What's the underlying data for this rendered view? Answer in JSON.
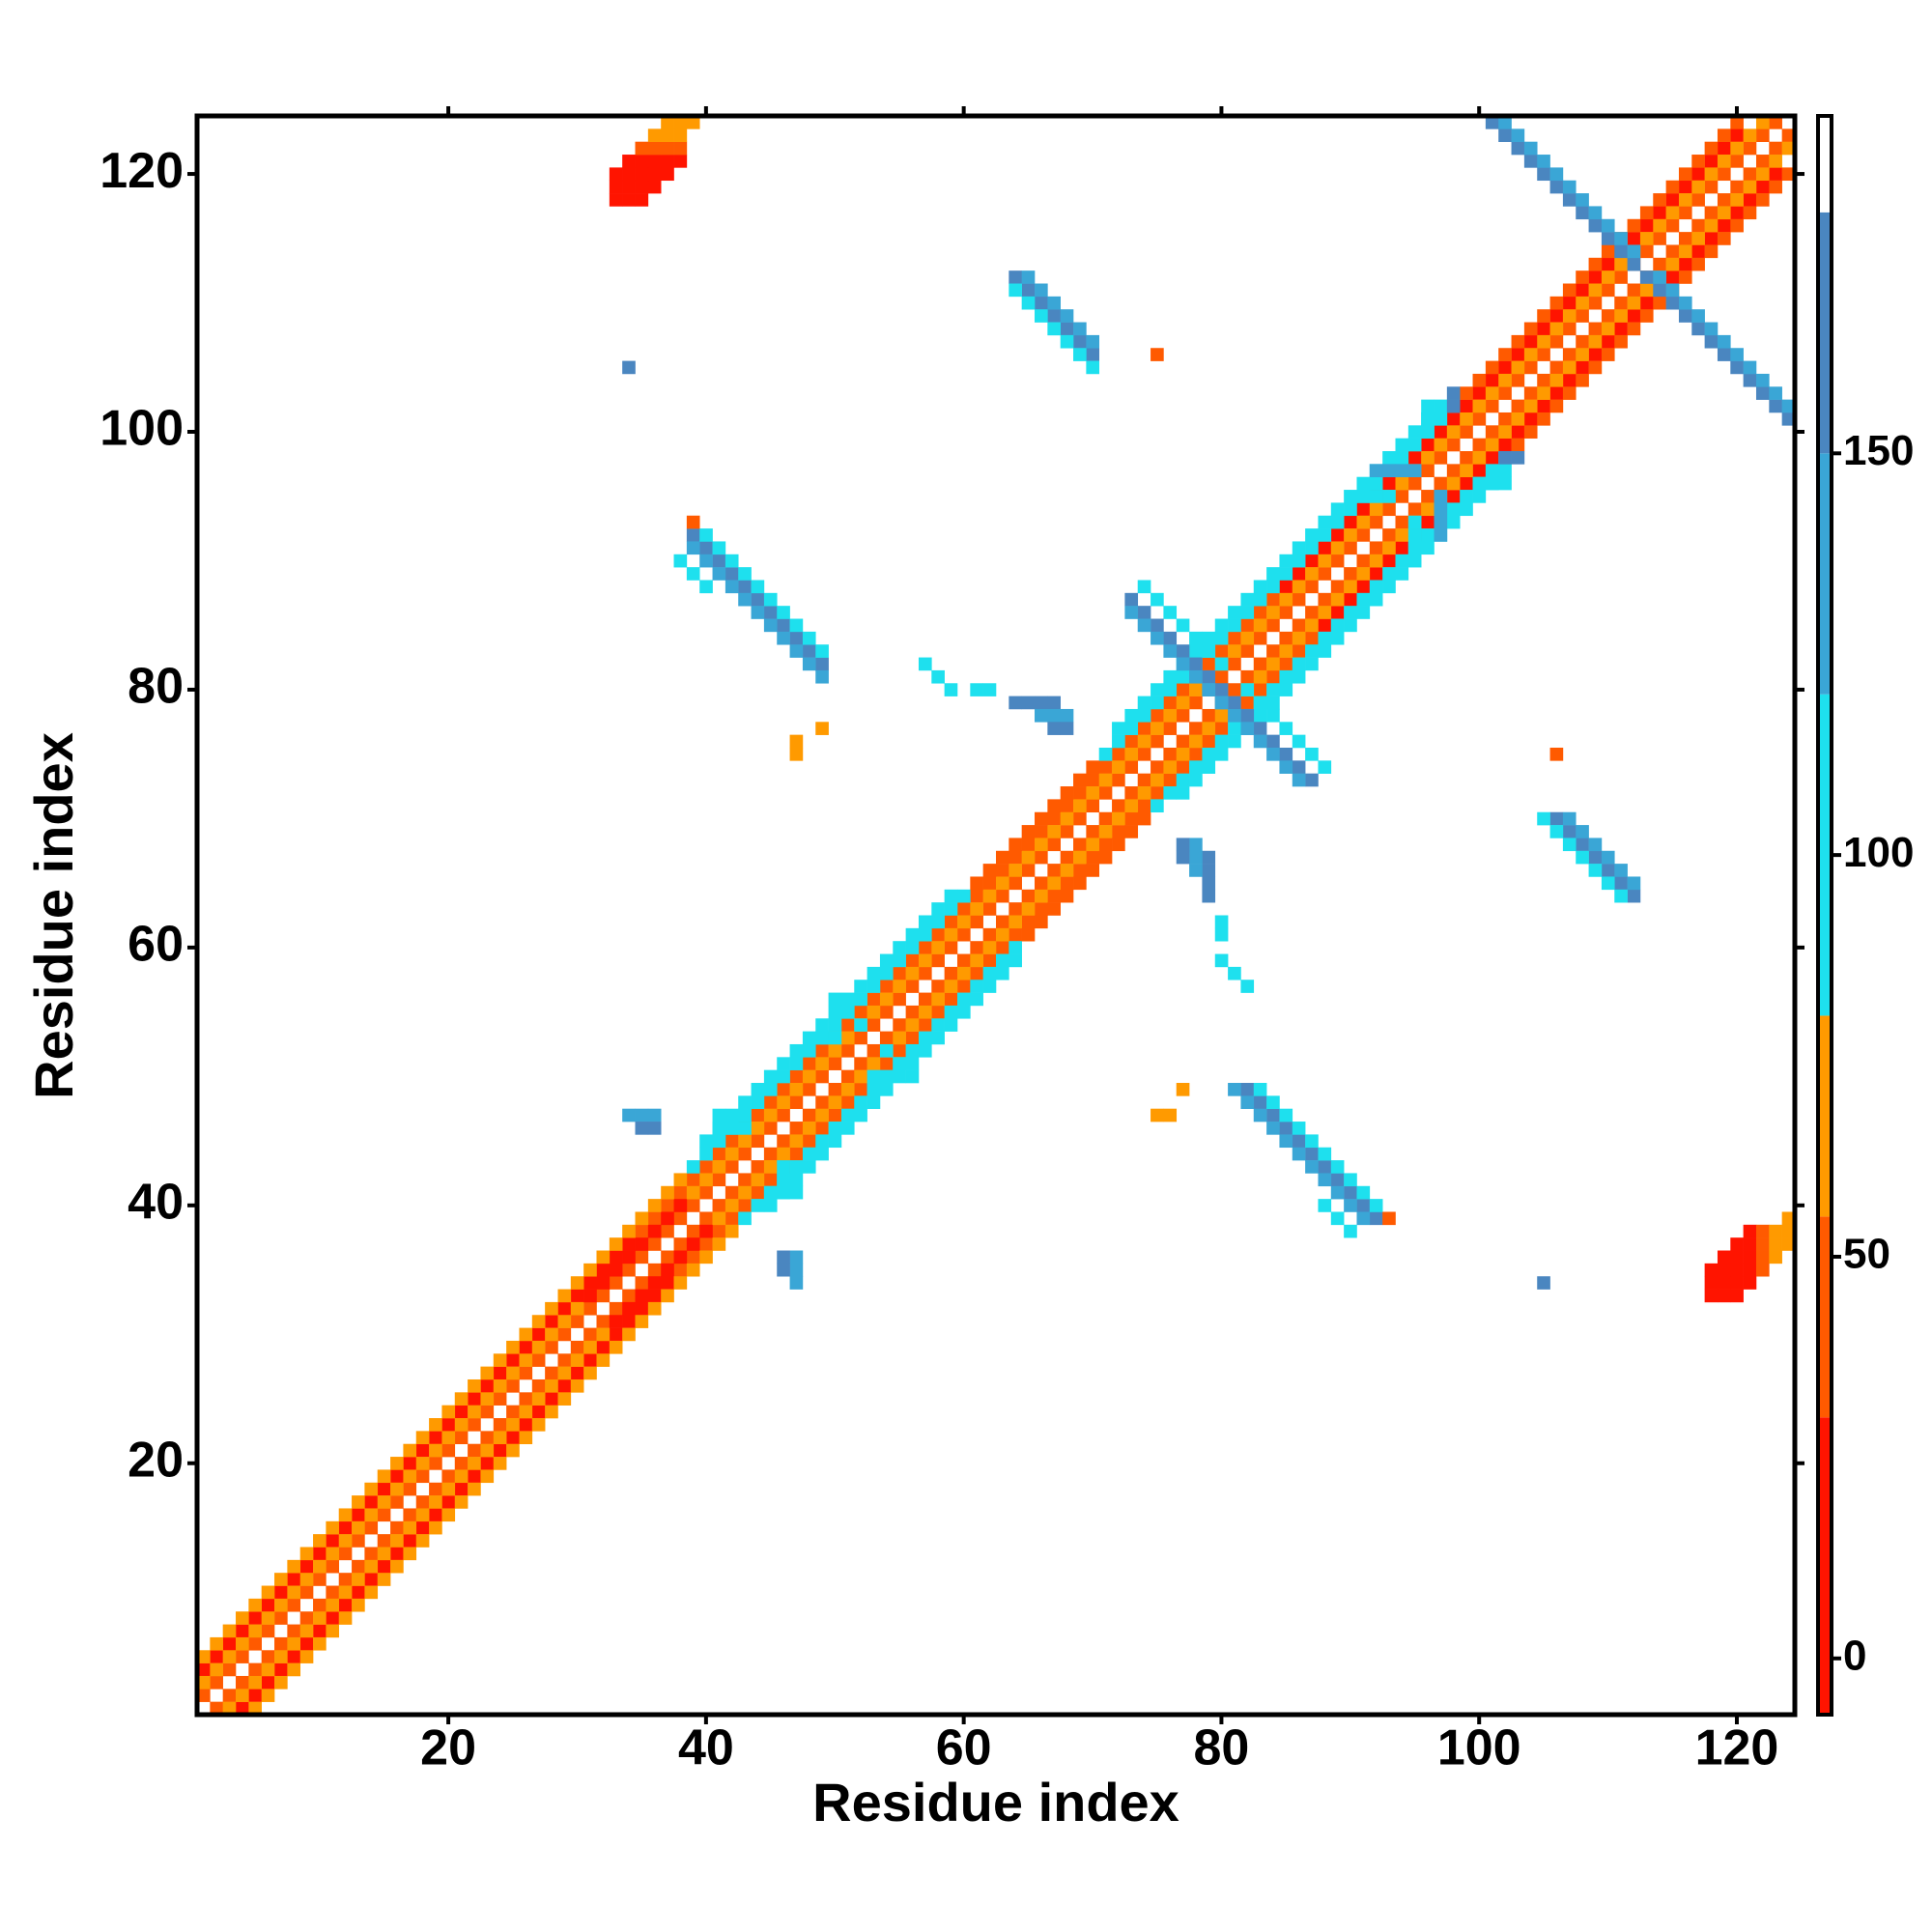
{
  "chart_data": {
    "type": "heatmap",
    "x_label": "Residue index",
    "y_label": "Residue index",
    "xlim": [
      0.5,
      124.5
    ],
    "ylim": [
      0.5,
      124.5
    ],
    "xticks": [
      20,
      40,
      60,
      80,
      100,
      120
    ],
    "yticks": [
      20,
      40,
      60,
      80,
      100,
      120
    ],
    "symmetric": true,
    "clim": [
      -7,
      192
    ],
    "cticks": [
      0,
      50,
      100,
      150
    ],
    "colorscale": [
      {
        "from": -7,
        "to": 30,
        "color": "#ff1400"
      },
      {
        "from": 30,
        "to": 55,
        "color": "#ff5a00"
      },
      {
        "from": 55,
        "to": 80,
        "color": "#ff9a00"
      },
      {
        "from": 80,
        "to": 120,
        "color": "#1ee0ee"
      },
      {
        "from": 120,
        "to": 150,
        "color": "#3aa6d6"
      },
      {
        "from": 150,
        "to": 180,
        "color": "#4a86c0"
      },
      {
        "from": 180,
        "to": 192,
        "color": "#ffffff"
      }
    ],
    "runs": [
      {
        "x": 1,
        "y": 2,
        "dx": 1,
        "dy": 1,
        "n": 123,
        "value": 40
      },
      {
        "x": 1,
        "y": 4,
        "dx": 1,
        "dy": 1,
        "n": 34,
        "value": 10
      },
      {
        "x": 35,
        "y": 38,
        "dx": 1,
        "dy": 1,
        "n": 50,
        "value": 40
      },
      {
        "x": 85,
        "y": 88,
        "dx": 1,
        "dy": 1,
        "n": 36,
        "value": 10
      },
      {
        "x": 1,
        "y": 3,
        "dx": 1,
        "dy": 1,
        "n": 30,
        "value": 65
      },
      {
        "x": 31,
        "y": 33,
        "dx": 1,
        "dy": 1,
        "n": 8,
        "value": 10
      },
      {
        "x": 39,
        "y": 41,
        "dx": 1,
        "dy": 1,
        "n": 84,
        "value": 65
      },
      {
        "x": 1,
        "y": 5,
        "dx": 1,
        "dy": 1,
        "n": 38,
        "value": 65
      },
      {
        "x": 39,
        "y": 43,
        "dx": 1,
        "dy": 1,
        "n": 22,
        "value": 95
      },
      {
        "x": 61,
        "y": 65,
        "dx": 1,
        "dy": 1,
        "n": 10,
        "value": 40
      },
      {
        "x": 71,
        "y": 75,
        "dx": 1,
        "dy": 1,
        "n": 28,
        "value": 95
      },
      {
        "x": 99,
        "y": 103,
        "dx": 1,
        "dy": 1,
        "n": 22,
        "value": 40
      },
      {
        "x": 40,
        "y": 45,
        "dx": 1,
        "dy": 1,
        "n": 20,
        "value": 95
      },
      {
        "x": 72,
        "y": 77,
        "dx": 1,
        "dy": 1,
        "n": 26,
        "value": 95
      },
      {
        "x": 33,
        "y": 118,
        "dx": 1,
        "dy": 0,
        "n": 3,
        "value": 10
      },
      {
        "x": 33,
        "y": 119,
        "dx": 1,
        "dy": 0,
        "n": 4,
        "value": 10
      },
      {
        "x": 33,
        "y": 120,
        "dx": 1,
        "dy": 0,
        "n": 5,
        "value": 10
      },
      {
        "x": 34,
        "y": 121,
        "dx": 1,
        "dy": 0,
        "n": 5,
        "value": 10
      },
      {
        "x": 35,
        "y": 122,
        "dx": 1,
        "dy": 0,
        "n": 4,
        "value": 40
      },
      {
        "x": 36,
        "y": 123,
        "dx": 1,
        "dy": 0,
        "n": 3,
        "value": 65
      },
      {
        "x": 37,
        "y": 124,
        "dx": 1,
        "dy": 0,
        "n": 3,
        "value": 65
      },
      {
        "x": 64,
        "y": 112,
        "dx": 1,
        "dy": -1,
        "n": 7,
        "value": 165
      },
      {
        "x": 64,
        "y": 111,
        "dx": 1,
        "dy": -1,
        "n": 7,
        "value": 95
      },
      {
        "x": 65,
        "y": 112,
        "dx": 1,
        "dy": -1,
        "n": 6,
        "value": 135
      },
      {
        "x": 39,
        "y": 92,
        "dx": 1,
        "dy": -1,
        "n": 11,
        "value": 165
      },
      {
        "x": 39,
        "y": 91,
        "dx": 1,
        "dy": -1,
        "n": 11,
        "value": 135
      },
      {
        "x": 40,
        "y": 92,
        "dx": 1,
        "dy": -1,
        "n": 10,
        "value": 95
      },
      {
        "x": 38,
        "y": 90,
        "dx": 1,
        "dy": -1,
        "n": 3,
        "value": 95
      },
      {
        "x": 73,
        "y": 87,
        "dx": 1,
        "dy": -1,
        "n": 8,
        "value": 165
      },
      {
        "x": 73,
        "y": 86,
        "dx": 1,
        "dy": -1,
        "n": 8,
        "value": 135
      },
      {
        "x": 74,
        "y": 88,
        "dx": 1,
        "dy": -1,
        "n": 7,
        "value": 95
      },
      {
        "x": 101,
        "y": 124,
        "dx": 1,
        "dy": -1,
        "n": 12,
        "value": 165
      },
      {
        "x": 102,
        "y": 124,
        "dx": 1,
        "dy": -1,
        "n": 11,
        "value": 135
      },
      {
        "x": 91,
        "y": 95,
        "dx": 1,
        "dy": 0,
        "n": 3,
        "value": 95
      },
      {
        "x": 92,
        "y": 97,
        "dx": 1,
        "dy": 0,
        "n": 4,
        "value": 135
      },
      {
        "x": 96,
        "y": 100,
        "dx": 0,
        "dy": 1,
        "n": 3,
        "value": 95
      },
      {
        "x": 98,
        "y": 102,
        "dx": 0,
        "dy": 1,
        "n": 2,
        "value": 165
      },
      {
        "x": 49,
        "y": 53,
        "dx": 1,
        "dy": 0,
        "n": 2,
        "value": 95
      },
      {
        "x": 50,
        "y": 56,
        "dx": 1,
        "dy": -1,
        "n": 3,
        "value": 95
      },
      {
        "x": 41,
        "y": 45,
        "dx": 0,
        "dy": 1,
        "n": 3,
        "value": 95
      },
      {
        "x": 42,
        "y": 46,
        "dx": 1,
        "dy": 0,
        "n": 2,
        "value": 95
      },
      {
        "x": 34,
        "y": 47,
        "dx": 1,
        "dy": 0,
        "n": 3,
        "value": 135
      },
      {
        "x": 35,
        "y": 46,
        "dx": 1,
        "dy": 0,
        "n": 2,
        "value": 165
      },
      {
        "x": 64,
        "y": 79,
        "dx": 1,
        "dy": 0,
        "n": 4,
        "value": 165
      },
      {
        "x": 66,
        "y": 78,
        "dx": 1,
        "dy": 0,
        "n": 3,
        "value": 135
      },
      {
        "x": 67,
        "y": 77,
        "dx": 1,
        "dy": 0,
        "n": 2,
        "value": 165
      },
      {
        "x": 57,
        "y": 82,
        "dx": 1,
        "dy": -1,
        "n": 3,
        "value": 95
      },
      {
        "x": 61,
        "y": 80,
        "dx": 1,
        "dy": 0,
        "n": 2,
        "value": 95
      },
      {
        "x": 75,
        "y": 106,
        "dx": 1,
        "dy": 0,
        "n": 1,
        "value": 40
      },
      {
        "x": 34,
        "y": 105,
        "dx": 1,
        "dy": 0,
        "n": 1,
        "value": 165
      },
      {
        "x": 47,
        "y": 75,
        "dx": 0,
        "dy": 1,
        "n": 2,
        "value": 65
      },
      {
        "x": 49,
        "y": 77,
        "dx": 1,
        "dy": 0,
        "n": 1,
        "value": 65
      },
      {
        "x": 39,
        "y": 93,
        "dx": 1,
        "dy": 0,
        "n": 1,
        "value": 40
      }
    ]
  }
}
